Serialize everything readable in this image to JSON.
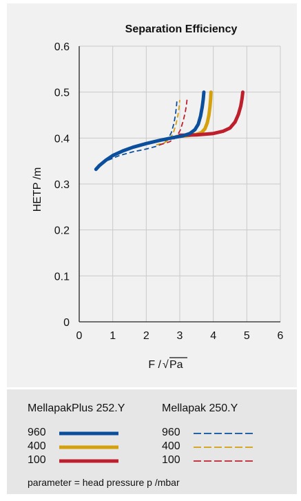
{
  "chart_data": {
    "type": "line",
    "title": "Separation Efficiency",
    "xlabel": "F /√Pa",
    "xlabel_prefix": "F /",
    "xlabel_root": "√",
    "xlabel_radicand": "Pa",
    "ylabel": "HETP /m",
    "xlim": [
      0,
      6
    ],
    "ylim": [
      0,
      0.6
    ],
    "xticks": [
      "0",
      "1",
      "2",
      "3",
      "4",
      "5",
      "6"
    ],
    "yticks": [
      "0",
      "0.1",
      "0.2",
      "0.3",
      "0.4",
      "0.5",
      "0.6"
    ],
    "grid": true,
    "legend": "bottom",
    "series": [
      {
        "group": "MellapakPlus 252.Y",
        "name": "960",
        "color": "#0b4f9c",
        "dash": false,
        "x": [
          0.5,
          0.6,
          0.8,
          1.0,
          1.3,
          1.6,
          2.0,
          2.4,
          2.8,
          3.1,
          3.3,
          3.45,
          3.55,
          3.62,
          3.67,
          3.7,
          3.72
        ],
        "y": [
          0.332,
          0.34,
          0.352,
          0.362,
          0.372,
          0.38,
          0.388,
          0.395,
          0.401,
          0.405,
          0.41,
          0.418,
          0.43,
          0.448,
          0.468,
          0.485,
          0.5
        ]
      },
      {
        "group": "MellapakPlus 252.Y",
        "name": "400",
        "color": "#d4a00c",
        "dash": false,
        "x": [
          2.9,
          3.2,
          3.5,
          3.65,
          3.75,
          3.82,
          3.87,
          3.9,
          3.92,
          3.93
        ],
        "y": [
          0.403,
          0.405,
          0.408,
          0.412,
          0.42,
          0.433,
          0.45,
          0.468,
          0.485,
          0.5
        ]
      },
      {
        "group": "MellapakPlus 252.Y",
        "name": "100",
        "color": "#bd1f2d",
        "dash": false,
        "x": [
          3.0,
          3.5,
          4.0,
          4.3,
          4.5,
          4.65,
          4.75,
          4.82,
          4.86,
          4.88
        ],
        "y": [
          0.406,
          0.407,
          0.41,
          0.415,
          0.422,
          0.435,
          0.452,
          0.47,
          0.487,
          0.5
        ]
      },
      {
        "group": "Mellapak 250.Y",
        "name": "960",
        "color": "#0b4f9c",
        "dash": true,
        "x": [
          0.5,
          0.8,
          1.2,
          1.6,
          2.0,
          2.3,
          2.5,
          2.65,
          2.75,
          2.82,
          2.87,
          2.9,
          2.92
        ],
        "y": [
          0.332,
          0.35,
          0.362,
          0.37,
          0.376,
          0.382,
          0.388,
          0.398,
          0.412,
          0.43,
          0.45,
          0.468,
          0.485
        ]
      },
      {
        "group": "Mellapak 250.Y",
        "name": "400",
        "color": "#d4a00c",
        "dash": true,
        "x": [
          2.3,
          2.55,
          2.7,
          2.8,
          2.88,
          2.94,
          2.98,
          3.0
        ],
        "y": [
          0.385,
          0.39,
          0.398,
          0.41,
          0.428,
          0.448,
          0.466,
          0.483
        ]
      },
      {
        "group": "Mellapak 250.Y",
        "name": "100",
        "color": "#bd1f2d",
        "dash": true,
        "x": [
          2.4,
          2.7,
          2.9,
          3.02,
          3.1,
          3.16,
          3.2,
          3.22
        ],
        "y": [
          0.385,
          0.392,
          0.402,
          0.418,
          0.437,
          0.455,
          0.472,
          0.486
        ]
      }
    ]
  },
  "legend": {
    "group_a": {
      "title": "MellapakPlus 252.Y",
      "items": [
        {
          "label": "960",
          "color": "#0b4f9c"
        },
        {
          "label": "400",
          "color": "#d4a00c"
        },
        {
          "label": "100",
          "color": "#bd1f2d"
        }
      ]
    },
    "group_b": {
      "title": "Mellapak 250.Y",
      "items": [
        {
          "label": "960",
          "color": "#0b4f9c"
        },
        {
          "label": "400",
          "color": "#d4a00c"
        },
        {
          "label": "100",
          "color": "#bd1f2d"
        }
      ]
    },
    "note": "parameter = head pressure p /mbar"
  }
}
